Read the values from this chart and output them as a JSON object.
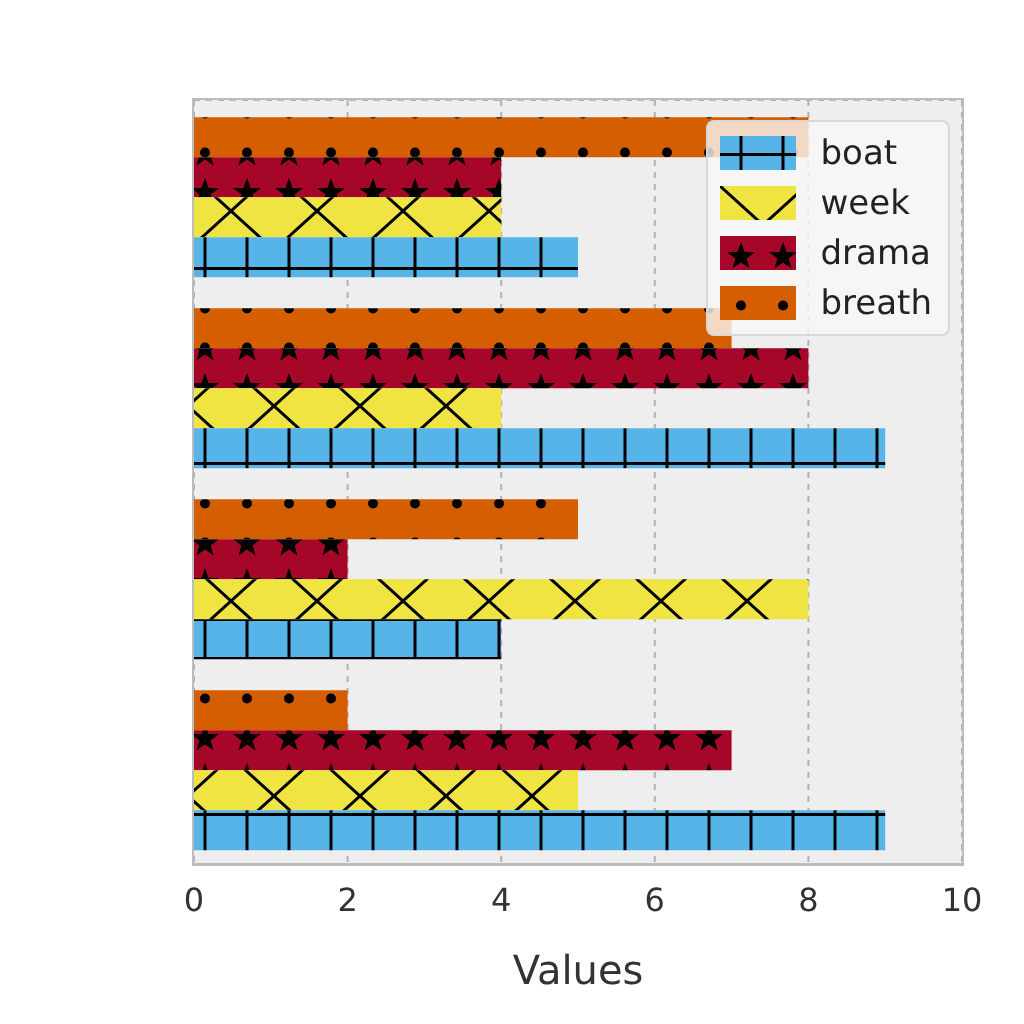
{
  "chart_data": {
    "type": "bar",
    "orientation": "horizontal",
    "xlabel": "Values",
    "categories": [
      null,
      null,
      null,
      null
    ],
    "series": [
      {
        "name": "boat",
        "color": "#56b4e9",
        "values": [
          5,
          9,
          4,
          9
        ]
      },
      {
        "name": "week",
        "color": "#f0e442",
        "values": [
          4,
          4,
          8,
          5
        ]
      },
      {
        "name": "drama",
        "color": "#a60628",
        "values": [
          4,
          8,
          2,
          7
        ]
      },
      {
        "name": "breath",
        "color": "#d55e00",
        "values": [
          8,
          7,
          5,
          2
        ]
      }
    ],
    "xlim": [
      0,
      10
    ],
    "xticks": [
      0,
      2,
      4,
      6,
      8,
      10
    ],
    "grid": true,
    "legend": "top right",
    "tick_labels": "x"
  }
}
